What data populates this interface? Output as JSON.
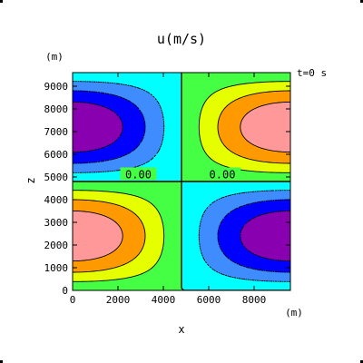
{
  "chart_data": {
    "type": "heatmap",
    "title": "u(m/s)",
    "xlabel": "x",
    "ylabel": "z",
    "xunit": "(m)",
    "yunit": "(m)",
    "time_label": "t=0  s",
    "xlim": [
      0,
      9600
    ],
    "ylim": [
      0,
      9600
    ],
    "xticks": [
      "0",
      "2000",
      "4000",
      "6000",
      "8000"
    ],
    "yticks": [
      "0",
      "1000",
      "2000",
      "3000",
      "4000",
      "5000",
      "6000",
      "7000",
      "8000",
      "9000"
    ],
    "xtick_values": [
      0,
      2000,
      4000,
      6000,
      8000
    ],
    "ytick_values": [
      0,
      1000,
      2000,
      3000,
      4000,
      5000,
      6000,
      7000,
      8000,
      9000
    ],
    "field": "u = A·cos(pi·x/L)·sin(2·pi·z/L), L = 9600 m (saddle-shaped, zero along x=4800 and z=4800)",
    "contour_labels": [
      {
        "text": "0.00",
        "x": 2900,
        "z": 5100
      },
      {
        "text": "0.00",
        "x": 6600,
        "z": 5100
      }
    ],
    "levels": [
      -1.0,
      -0.75,
      -0.5,
      -0.25,
      0.0,
      0.25,
      0.5,
      0.75,
      1.0
    ],
    "level_colors": [
      "#8800b0",
      "#0000ff",
      "#3f8cff",
      "#00ffff",
      "#44ff44",
      "#e6ff00",
      "#ff9900",
      "#ff0000",
      "#ff9999"
    ],
    "grid": false,
    "legend": "none"
  }
}
